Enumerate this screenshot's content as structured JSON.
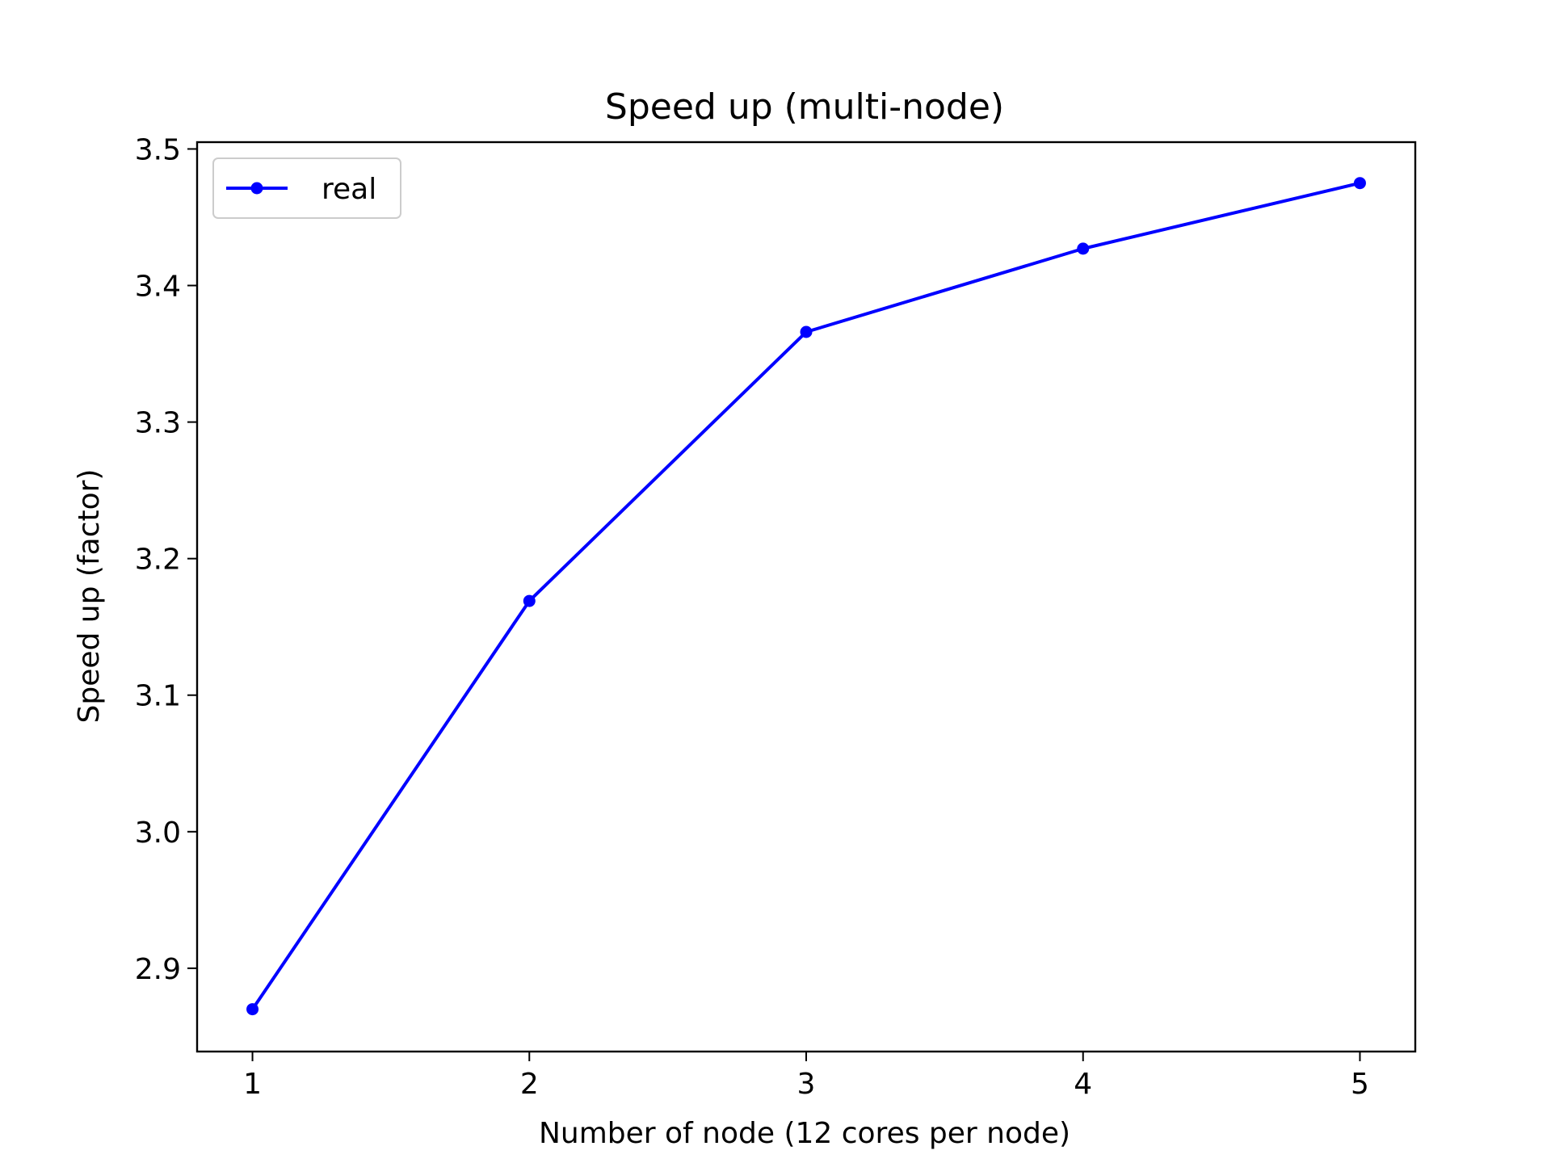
{
  "chart_data": {
    "type": "line",
    "title": "Speed up (multi-node)",
    "xlabel": "Number of node (12 cores per node)",
    "ylabel": "Speed up (factor)",
    "x": [
      1,
      2,
      3,
      4,
      5
    ],
    "series": [
      {
        "name": "real",
        "color": "#0000ff",
        "marker": "circle",
        "values": [
          2.87,
          3.169,
          3.366,
          3.427,
          3.475
        ]
      }
    ],
    "xlim": [
      0.8,
      5.2
    ],
    "ylim": [
      2.839,
      3.505
    ],
    "xticks": [
      1,
      2,
      3,
      4,
      5
    ],
    "xtick_labels": [
      "1",
      "2",
      "3",
      "4",
      "5"
    ],
    "yticks": [
      2.9,
      3.0,
      3.1,
      3.2,
      3.3,
      3.4,
      3.5
    ],
    "ytick_labels": [
      "2.9",
      "3.0",
      "3.1",
      "3.2",
      "3.3",
      "3.4",
      "3.5"
    ],
    "grid": false,
    "legend_position": "upper-left"
  }
}
